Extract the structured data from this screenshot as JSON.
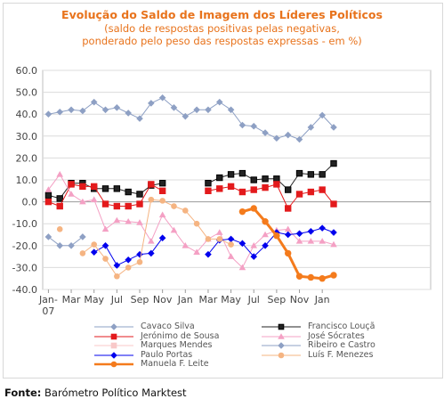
{
  "title": "Evolução do Saldo  de Imagem dos Líderes Políticos",
  "subtitle_line1": "(saldo de respostas positivas pelas negativas,",
  "subtitle_line2": "ponderado pelo peso das respostas expressas - em %)",
  "source_label": "Fonte:",
  "source_text": "Barómetro Político Marktest",
  "chart_data": {
    "type": "line",
    "title": "Evolução do Saldo  de Imagem dos Líderes Políticos",
    "subtitle": "(saldo de respostas positivas pelas negativas, ponderado pelo peso das respostas expressas - em %)",
    "ylim": [
      -40,
      60
    ],
    "y_ticks": [
      "60.0",
      "50.0",
      "40.0",
      "30.0",
      "20.0",
      "10.0",
      "0.0",
      "-10.0",
      "-20.0",
      "-30.0",
      "-40.0"
    ],
    "x_tick_labels": [
      "Jan-\n07",
      "Mar",
      "May",
      "Jul",
      "Sep",
      "Nov",
      "Jan",
      "Mar",
      "May",
      "Jul",
      "Sep",
      "Nov",
      "Jan"
    ],
    "grid": true,
    "legend_position": "bottom",
    "n_points": 34,
    "series": [
      {
        "name": "Cavaco Silva",
        "color": "#8ea0c4",
        "marker": "diamond",
        "line_width": 1,
        "values": [
          40,
          41,
          42,
          41.5,
          45.5,
          42,
          43,
          40.5,
          38,
          45,
          47.5,
          43,
          39,
          42,
          42,
          45.5,
          42,
          35,
          34.5,
          31.5,
          29,
          30.5,
          28.5,
          34,
          39.5,
          34,
          null,
          null,
          null,
          null,
          null,
          null,
          null,
          null
        ]
      },
      {
        "name": "Francisco Louçã",
        "color": "#222222",
        "marker": "square",
        "line_width": 1,
        "values": [
          3,
          1.5,
          8.5,
          8.5,
          6,
          6,
          6,
          4.5,
          3.5,
          7.5,
          8.5,
          null,
          null,
          null,
          8.5,
          11,
          12.5,
          13,
          10,
          10.5,
          10.5,
          5.5,
          13,
          12.5,
          12.5,
          17.5,
          null,
          null,
          null,
          null,
          null,
          null,
          null,
          null
        ]
      },
      {
        "name": "Jerónimo de Sousa",
        "color": "#e31a1c",
        "marker": "square",
        "line_width": 1,
        "values": [
          0,
          -2,
          8,
          7,
          7,
          -1,
          -2,
          -2,
          -1,
          8,
          5,
          null,
          null,
          null,
          5,
          6,
          7,
          4.5,
          5.5,
          6.5,
          8,
          -3,
          3.5,
          4.5,
          5.5,
          -1,
          null,
          null,
          null,
          null,
          null,
          null,
          null,
          null
        ]
      },
      {
        "name": "José Sócrates",
        "color": "#f4a0c4",
        "marker": "triangle",
        "line_width": 1,
        "values": [
          5.5,
          12.5,
          3.5,
          0,
          1,
          -12.5,
          -8.5,
          -9,
          -9.5,
          -18,
          -6,
          -13,
          -20,
          -23,
          -17,
          -14,
          -25,
          -30,
          -20,
          -15,
          -13,
          -12.5,
          -18,
          -18,
          -18,
          -19.5,
          null,
          null,
          null,
          null,
          null,
          null,
          null,
          null
        ]
      },
      {
        "name": "Marques Mendes",
        "color": "#f8c8c8",
        "marker": "square",
        "line_width": 1,
        "values": [
          null,
          null,
          null,
          null,
          null,
          null,
          null,
          null,
          null,
          null,
          null,
          null,
          null,
          null,
          null,
          null,
          null,
          null,
          null,
          null,
          null,
          null,
          null,
          null,
          null,
          null,
          null,
          null,
          null,
          null,
          null,
          null,
          null,
          null
        ]
      },
      {
        "name": "Ribeiro e Castro",
        "color": "#8ea0c4",
        "marker": "diamond",
        "line_width": 1,
        "values": [
          -16,
          -20,
          -20,
          -16,
          null,
          null,
          null,
          null,
          null,
          null,
          null,
          null,
          null,
          null,
          null,
          null,
          null,
          null,
          null,
          null,
          null,
          null,
          null,
          null,
          null,
          null,
          null,
          null,
          null,
          null,
          null,
          null,
          null,
          null
        ]
      },
      {
        "name": "Paulo Portas",
        "color": "#0000ee",
        "marker": "diamond",
        "line_width": 1,
        "values": [
          null,
          null,
          null,
          null,
          -23,
          -20,
          -29,
          -26.5,
          -24,
          -23.5,
          -16.5,
          null,
          null,
          null,
          -24,
          -17.5,
          -17,
          -19,
          -25,
          -20,
          -14,
          -15,
          -14.5,
          -13.5,
          -12,
          -14,
          null,
          null,
          null,
          null,
          null,
          null,
          null,
          null
        ]
      },
      {
        "name": "Luís F. Menezes",
        "color": "#f5b482",
        "marker": "circle",
        "line_width": 1,
        "values": [
          null,
          -12.5,
          null,
          -23.5,
          -19.5,
          -26,
          -34,
          -30,
          -27.5,
          1,
          0.5,
          -2,
          -4,
          -10,
          -17,
          -17,
          -19.5,
          null,
          null,
          null,
          null,
          null,
          null,
          null,
          null,
          null,
          null,
          null,
          null,
          null,
          null,
          null,
          null,
          null
        ]
      },
      {
        "name": "Manuela F. Leite",
        "color": "#f47b1c",
        "marker": "circle",
        "line_width": 3,
        "values": [
          null,
          null,
          null,
          null,
          null,
          null,
          null,
          null,
          null,
          null,
          null,
          null,
          null,
          null,
          null,
          null,
          null,
          -4.5,
          -3,
          -9,
          -15.5,
          -23.5,
          -34,
          -34.5,
          -35,
          -33.5,
          null,
          null,
          null,
          null,
          null,
          null,
          null,
          null
        ]
      }
    ]
  },
  "legend": [
    {
      "label": "Cavaco Silva",
      "color": "#8ea0c4",
      "marker": "diamond"
    },
    {
      "label": "Francisco Louçã",
      "color": "#222222",
      "marker": "square"
    },
    {
      "label": "Jerónimo de Sousa",
      "color": "#e31a1c",
      "marker": "square"
    },
    {
      "label": "José Sócrates",
      "color": "#f4a0c4",
      "marker": "triangle"
    },
    {
      "label": "Marques Mendes",
      "color": "#f8c8c8",
      "marker": "square"
    },
    {
      "label": "Ribeiro e Castro",
      "color": "#8ea0c4",
      "marker": "diamond"
    },
    {
      "label": "Paulo Portas",
      "color": "#0000ee",
      "marker": "diamond"
    },
    {
      "label": "Luís F. Menezes",
      "color": "#f5b482",
      "marker": "circle"
    },
    {
      "label": "Manuela F. Leite",
      "color": "#f47b1c",
      "marker": "circle"
    }
  ]
}
